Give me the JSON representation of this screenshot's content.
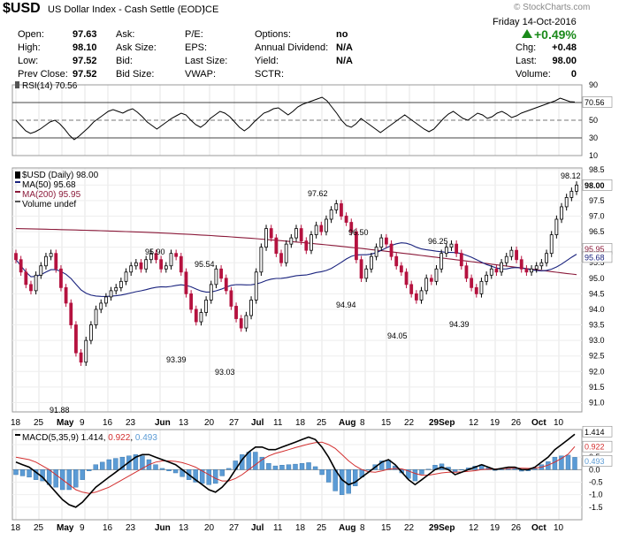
{
  "header": {
    "symbol": "$USD",
    "name": "US Dollar Index - Cash Settle (EOD)",
    "exchange": "ICE",
    "watermark": "© StockCharts.com",
    "date": "Friday  14-Oct-2016",
    "pct_change": "+0.49%",
    "rows": [
      {
        "l1": "Open:",
        "v1": "97.63",
        "l2": "Ask:",
        "v2": "",
        "l3": "P/E:",
        "v3": "",
        "l4": "Options:",
        "v4": "no"
      },
      {
        "l1": "High:",
        "v1": "98.10",
        "l2": "Ask Size:",
        "v2": "",
        "l3": "EPS:",
        "v3": "",
        "l4": "Annual Dividend:",
        "v4": "N/A"
      },
      {
        "l1": "Low:",
        "v1": "97.52",
        "l2": "Bid:",
        "v2": "",
        "l3": "Last Size:",
        "v3": "",
        "l4": "Yield:",
        "v4": "N/A"
      },
      {
        "l1": "Prev Close:",
        "v1": "97.52",
        "l2": "Bid Size:",
        "v2": "",
        "l3": "VWAP:",
        "v3": "",
        "l4": "SCTR:",
        "v4": ""
      }
    ],
    "right_rows": [
      {
        "label": "Chg:",
        "value": "+0.48"
      },
      {
        "label": "Last:",
        "value": "98.00"
      },
      {
        "label": "Volume:",
        "value": "0"
      }
    ]
  },
  "colors": {
    "up": "#000000",
    "down": "#b5123f",
    "ma50": "#1a237e",
    "ma200": "#8b1a3a",
    "macd_line": "#000000",
    "macd_signal": "#d32f2f",
    "hist": "#5b9bd5",
    "green": "#1a8a1a"
  },
  "chart_data": [
    {
      "type": "line",
      "panel": "rsi",
      "legend": "RSI(14) 70.56",
      "levels": [
        70,
        50,
        30
      ],
      "ylim": [
        10,
        90
      ],
      "yticks": [
        "90",
        "70",
        "50",
        "30",
        "10"
      ],
      "last_label": "70.56",
      "values": [
        50,
        44,
        38,
        35,
        37,
        40,
        44,
        48,
        50,
        46,
        40,
        33,
        28,
        32,
        37,
        42,
        48,
        52,
        56,
        60,
        62,
        60,
        58,
        61,
        63,
        59,
        54,
        48,
        44,
        40,
        44,
        48,
        52,
        55,
        58,
        56,
        50,
        45,
        42,
        46,
        52,
        56,
        60,
        58,
        54,
        48,
        42,
        38,
        42,
        48,
        53,
        58,
        60,
        63,
        64,
        60,
        56,
        60,
        65,
        68,
        70,
        72,
        74,
        76,
        72,
        65,
        58,
        50,
        44,
        42,
        46,
        52,
        48,
        44,
        40,
        36,
        40,
        44,
        48,
        52,
        56,
        52,
        48,
        44,
        40,
        37,
        40,
        46,
        52,
        57,
        60,
        56,
        52,
        50,
        54,
        58,
        56,
        52,
        54,
        58,
        60,
        57,
        53,
        55,
        58,
        60,
        62,
        64,
        66,
        68,
        70,
        72,
        75,
        73,
        71,
        70.56
      ]
    },
    {
      "type": "candlestick",
      "panel": "price",
      "legend": [
        "$USD (Daily) 98.00",
        "MA(50) 95.68",
        "MA(200) 95.95",
        "Volume undef"
      ],
      "ylim": [
        90.7,
        98.55
      ],
      "yticks": [
        "98.5",
        "98.0",
        "97.5",
        "97.0",
        "96.5",
        "96.0",
        "95.5",
        "95.0",
        "94.5",
        "94.0",
        "93.5",
        "93.0",
        "92.5",
        "92.0",
        "91.5",
        "91.0"
      ],
      "annotations": [
        "91.88",
        "95.90",
        "93.39",
        "95.54",
        "93.03",
        "97.62",
        "94.94",
        "96.50",
        "94.05",
        "96.25",
        "94.39",
        "98.12"
      ],
      "last_labels": [
        "98.00",
        "95.95",
        "95.68"
      ],
      "closes": [
        95.6,
        95.2,
        94.8,
        94.6,
        95.1,
        95.4,
        95.7,
        95.8,
        95.3,
        94.7,
        94.2,
        93.5,
        92.6,
        92.3,
        93.0,
        93.5,
        94.0,
        94.2,
        94.4,
        94.6,
        94.7,
        94.9,
        95.2,
        95.4,
        95.5,
        95.3,
        95.6,
        95.8,
        95.6,
        95.3,
        95.4,
        95.8,
        95.7,
        95.2,
        94.5,
        94.0,
        93.6,
        93.9,
        94.3,
        94.8,
        95.3,
        95.0,
        94.6,
        94.1,
        93.7,
        93.4,
        93.8,
        94.3,
        95.2,
        96.0,
        96.6,
        96.3,
        95.8,
        95.5,
        96.1,
        96.3,
        96.6,
        96.2,
        95.9,
        96.4,
        96.7,
        96.5,
        96.9,
        97.2,
        97.4,
        97.0,
        96.8,
        96.5,
        95.6,
        95.0,
        95.3,
        95.7,
        96.0,
        96.3,
        96.1,
        95.7,
        95.4,
        95.2,
        94.8,
        94.5,
        94.3,
        94.6,
        95.0,
        94.9,
        95.3,
        95.8,
        96.0,
        96.1,
        95.8,
        95.4,
        95.0,
        94.7,
        94.5,
        94.9,
        95.1,
        95.3,
        95.2,
        95.5,
        95.7,
        95.9,
        95.6,
        95.3,
        95.2,
        95.3,
        95.4,
        95.5,
        95.8,
        96.4,
        96.9,
        97.3,
        97.6,
        97.8,
        98.0
      ]
    },
    {
      "type": "line",
      "panel": "macd",
      "legend": [
        "MACD(5,35,9) 1.414",
        "0.922",
        "0.493"
      ],
      "ylim": [
        -2.0,
        1.6
      ],
      "yticks": [
        "1.0",
        "0.5",
        "0.0",
        "-0.5",
        "-1.0",
        "-1.5"
      ],
      "last_labels": [
        "1.414",
        "0.922",
        "0.493"
      ],
      "macd": [
        0.3,
        0.2,
        0.1,
        -0.1,
        -0.3,
        -0.6,
        -0.9,
        -1.2,
        -1.4,
        -1.5,
        -1.3,
        -1.0,
        -0.7,
        -0.5,
        -0.3,
        -0.1,
        0.1,
        0.3,
        0.5,
        0.6,
        0.6,
        0.5,
        0.4,
        0.3,
        0.2,
        0.0,
        -0.2,
        -0.4,
        -0.6,
        -0.8,
        -0.9,
        -0.7,
        -0.4,
        0.0,
        0.4,
        0.7,
        0.9,
        0.9,
        0.8,
        0.8,
        0.9,
        1.0,
        1.1,
        1.2,
        1.3,
        1.2,
        0.9,
        0.5,
        0.0,
        -0.4,
        -0.6,
        -0.5,
        -0.3,
        -0.1,
        0.1,
        0.3,
        0.4,
        0.2,
        -0.1,
        -0.4,
        -0.6,
        -0.4,
        -0.2,
        0.0,
        0.1,
        0.0,
        -0.2,
        -0.1,
        0.0,
        0.1,
        0.2,
        0.1,
        0.0,
        0.05,
        0.1,
        0.1,
        0.0,
        0.0,
        0.1,
        0.3,
        0.5,
        0.8,
        1.0,
        1.2,
        1.414
      ],
      "signal": [
        0.5,
        0.45,
        0.4,
        0.3,
        0.15,
        0.0,
        -0.2,
        -0.4,
        -0.6,
        -0.8,
        -0.9,
        -0.95,
        -0.9,
        -0.8,
        -0.7,
        -0.55,
        -0.4,
        -0.25,
        -0.1,
        0.05,
        0.2,
        0.3,
        0.35,
        0.35,
        0.33,
        0.28,
        0.2,
        0.1,
        -0.05,
        -0.2,
        -0.35,
        -0.45,
        -0.45,
        -0.35,
        -0.2,
        0.0,
        0.2,
        0.4,
        0.55,
        0.65,
        0.72,
        0.8,
        0.88,
        0.95,
        1.02,
        1.08,
        1.1,
        1.0,
        0.85,
        0.6,
        0.35,
        0.15,
        0.0,
        -0.08,
        -0.1,
        -0.05,
        0.02,
        0.05,
        0.03,
        -0.05,
        -0.15,
        -0.22,
        -0.22,
        -0.18,
        -0.13,
        -0.1,
        -0.1,
        -0.09,
        -0.07,
        -0.04,
        0.0,
        0.02,
        0.03,
        0.04,
        0.05,
        0.06,
        0.06,
        0.05,
        0.06,
        0.1,
        0.18,
        0.3,
        0.45,
        0.62,
        0.922
      ]
    }
  ],
  "xaxis": {
    "labels": [
      "18",
      "25",
      "May",
      "9",
      "16",
      "23",
      "Jun",
      "13",
      "20",
      "27",
      "Jul",
      "11",
      "18",
      "25",
      "Aug",
      "8",
      "15",
      "22",
      "29Sep",
      "12",
      "19",
      "26",
      "Oct",
      "10"
    ],
    "bold": [
      "May",
      "Jun",
      "Jul",
      "Aug",
      "Sep",
      "Oct"
    ]
  }
}
